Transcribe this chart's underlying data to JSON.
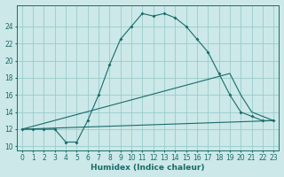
{
  "xlabel": "Humidex (Indice chaleur)",
  "bg_color": "#cce8e8",
  "grid_color": "#99cccc",
  "line_color": "#1a6b6b",
  "xlim": [
    -0.5,
    23.5
  ],
  "ylim": [
    9.5,
    26.5
  ],
  "xticks": [
    0,
    1,
    2,
    3,
    4,
    5,
    6,
    7,
    8,
    9,
    10,
    11,
    12,
    13,
    14,
    15,
    16,
    17,
    18,
    19,
    20,
    21,
    22,
    23
  ],
  "yticks": [
    10,
    12,
    14,
    16,
    18,
    20,
    22,
    24
  ],
  "line_max": {
    "x": [
      0,
      1,
      2,
      3,
      4,
      5,
      6,
      7,
      8,
      9,
      10,
      11,
      12,
      13,
      14,
      15,
      16,
      17,
      18,
      19,
      20,
      21,
      22,
      23
    ],
    "y": [
      12,
      12,
      12,
      12,
      10.5,
      10.5,
      13,
      16,
      19.5,
      22.5,
      24,
      25.5,
      25.2,
      25.5,
      25,
      24,
      22.5,
      21,
      18.5,
      16,
      14,
      13.5,
      13,
      13
    ]
  },
  "line_mean": {
    "x": [
      0,
      19,
      20,
      21,
      22,
      23
    ],
    "y": [
      12,
      18.5,
      16,
      14,
      13.5,
      13
    ]
  },
  "line_min": {
    "x": [
      0,
      23
    ],
    "y": [
      12,
      13
    ]
  }
}
